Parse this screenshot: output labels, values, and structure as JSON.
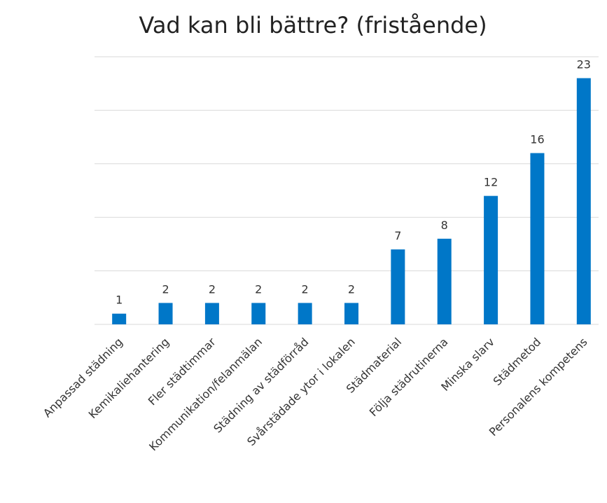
{
  "chart_data": {
    "type": "bar",
    "title": "Vad kan bli bättre? (fristående)",
    "categories": [
      "Anpassad städning",
      "Kemikaliehantering",
      "Fler städtimmar",
      "Kommunikation/felanmälan",
      "Städning av städförråd",
      "Svårstädade ytor i lokalen",
      "Städmaterial",
      "Följa städrutinerna",
      "Minska slarv",
      "Städmetod",
      "Personalens kompetens"
    ],
    "values": [
      1,
      2,
      2,
      2,
      2,
      2,
      7,
      8,
      12,
      16,
      23
    ],
    "color": "#0077c8",
    "ylim": [
      0,
      25
    ],
    "yticks": [
      0,
      5,
      10,
      15,
      20,
      25
    ],
    "grid": true
  }
}
